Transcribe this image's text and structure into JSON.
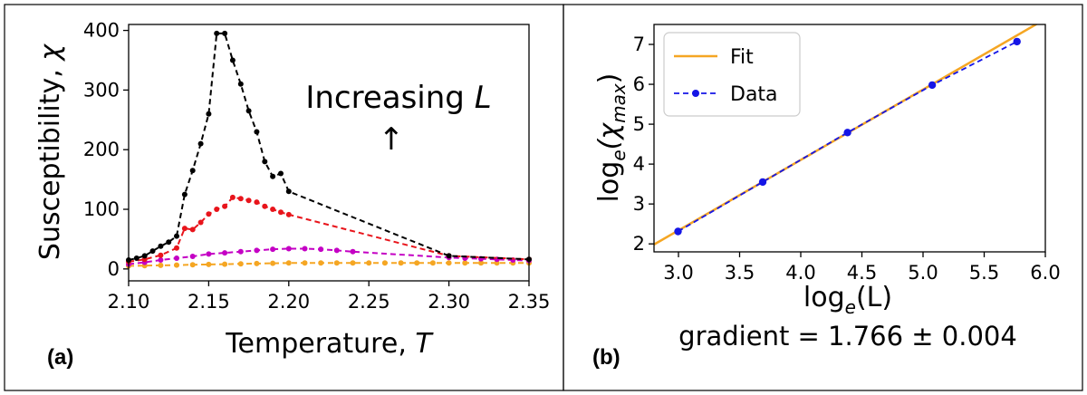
{
  "panels": {
    "a_label": "(a)",
    "b_label": "(b)"
  },
  "chart_data": [
    {
      "type": "line",
      "panel": "(a)",
      "xlabel_text": "Temperature, ",
      "xlabel_var": "T",
      "ylabel_text": "Susceptibility, ",
      "ylabel_var": "χ",
      "xlim": [
        2.1,
        2.35
      ],
      "ylim": [
        -20,
        410
      ],
      "xticks": [
        "2.10",
        "2.15",
        "2.20",
        "2.25",
        "2.30",
        "2.35"
      ],
      "xtick_values": [
        2.1,
        2.15,
        2.2,
        2.25,
        2.3,
        2.35
      ],
      "yticks": [
        "0",
        "100",
        "200",
        "300",
        "400"
      ],
      "ytick_values": [
        0,
        100,
        200,
        300,
        400
      ],
      "annotation_text": "Increasing ",
      "annotation_var": "L",
      "annotation_arrow": "↑",
      "series": [
        {
          "color": "#f5a623",
          "x": [
            2.1,
            2.11,
            2.12,
            2.13,
            2.14,
            2.15,
            2.16,
            2.17,
            2.18,
            2.19,
            2.2,
            2.21,
            2.22,
            2.23,
            2.24,
            2.25,
            2.26,
            2.27,
            2.28,
            2.29,
            2.3,
            2.31,
            2.32,
            2.33,
            2.34,
            2.35
          ],
          "y": [
            5,
            5.5,
            6,
            6.5,
            7,
            7.5,
            8,
            8.5,
            9,
            9.5,
            10,
            10,
            10,
            10,
            10,
            10,
            10,
            10,
            10,
            10,
            10,
            10,
            10,
            10,
            10,
            10
          ]
        },
        {
          "color": "#c400c4",
          "x": [
            2.1,
            2.11,
            2.12,
            2.13,
            2.14,
            2.15,
            2.16,
            2.17,
            2.18,
            2.19,
            2.2,
            2.21,
            2.22,
            2.23,
            2.24,
            2.3,
            2.31,
            2.32,
            2.33,
            2.34,
            2.35
          ],
          "y": [
            8,
            11,
            15,
            18,
            21,
            25,
            27,
            29,
            31,
            33,
            34,
            34,
            33,
            31,
            29,
            19,
            18,
            17,
            16,
            15,
            14
          ]
        },
        {
          "color": "#e8141b",
          "x": [
            2.1,
            2.11,
            2.12,
            2.13,
            2.135,
            2.14,
            2.145,
            2.15,
            2.155,
            2.16,
            2.165,
            2.17,
            2.175,
            2.18,
            2.185,
            2.19,
            2.195,
            2.2,
            2.3,
            2.35
          ],
          "y": [
            12,
            16,
            23,
            35,
            68,
            66,
            78,
            92,
            100,
            105,
            120,
            118,
            115,
            112,
            105,
            100,
            95,
            91,
            22,
            16
          ]
        },
        {
          "color": "#000000",
          "x": [
            2.1,
            2.105,
            2.11,
            2.115,
            2.12,
            2.125,
            2.13,
            2.135,
            2.14,
            2.145,
            2.15,
            2.155,
            2.16,
            2.165,
            2.17,
            2.175,
            2.18,
            2.185,
            2.19,
            2.195,
            2.2,
            2.3,
            2.35
          ],
          "y": [
            15,
            18,
            22,
            30,
            38,
            45,
            55,
            125,
            165,
            210,
            260,
            395,
            395,
            350,
            310,
            265,
            230,
            180,
            155,
            160,
            130,
            22,
            16
          ]
        }
      ]
    },
    {
      "type": "line",
      "panel": "(b)",
      "xlabel_text": "log",
      "xlabel_sub": "e",
      "xlabel_rest": "(L)",
      "ylabel_text": "log",
      "ylabel_sub": "e",
      "ylabel_rest_open": "(χ",
      "ylabel_rest_sub": "max",
      "ylabel_rest_close": ")",
      "xlim": [
        2.8,
        6.0
      ],
      "ylim": [
        1.8,
        7.5
      ],
      "xticks": [
        "3.0",
        "3.5",
        "4.0",
        "4.5",
        "5.0",
        "5.5",
        "6.0"
      ],
      "xtick_values": [
        3.0,
        3.5,
        4.0,
        4.5,
        5.0,
        5.5,
        6.0
      ],
      "yticks": [
        "2",
        "3",
        "4",
        "5",
        "6",
        "7"
      ],
      "ytick_values": [
        2,
        3,
        4,
        5,
        6,
        7
      ],
      "legend": [
        "Fit",
        "Data"
      ],
      "gradient_text": "gradient = 1.766 ± 0.004",
      "fit": {
        "color": "#f5a623",
        "slope": 1.766,
        "intercept": -2.96,
        "x_range": [
          2.8,
          6.0
        ]
      },
      "series": [
        {
          "name": "Data",
          "color": "#1515e6",
          "x": [
            2.996,
            3.689,
            4.382,
            5.075,
            5.768
          ],
          "y": [
            2.31,
            3.55,
            4.79,
            5.98,
            7.07
          ]
        }
      ]
    }
  ]
}
